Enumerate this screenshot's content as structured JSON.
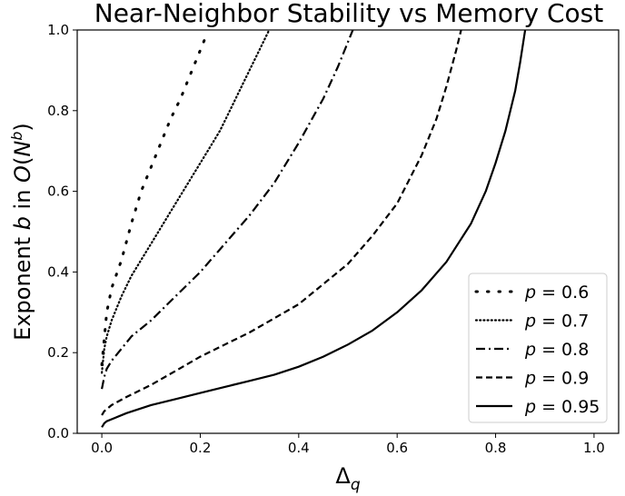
{
  "chart_data": {
    "type": "line",
    "title": "Near-Neighbor Stability vs Memory Cost",
    "xlabel": "Δ_q",
    "ylabel": "Exponent b in O(N^b)",
    "xlim": [
      -0.05,
      1.05
    ],
    "ylim": [
      0.0,
      1.0
    ],
    "x_ticks": [
      "0.0",
      "0.2",
      "0.4",
      "0.6",
      "0.8",
      "1.0"
    ],
    "y_ticks": [
      "0.0",
      "0.2",
      "0.4",
      "0.6",
      "0.8",
      "1.0"
    ],
    "grid": false,
    "legend": "bottom-right",
    "series": [
      {
        "name": "p = 0.6",
        "p_value": "0.6",
        "style": "dotted-sparse",
        "x": [
          0.0,
          0.01,
          0.02,
          0.04,
          0.06,
          0.08,
          0.1,
          0.12,
          0.14,
          0.16,
          0.18,
          0.2,
          0.21
        ],
        "y": [
          0.17,
          0.3,
          0.36,
          0.43,
          0.52,
          0.6,
          0.66,
          0.72,
          0.78,
          0.83,
          0.89,
          0.95,
          0.98
        ]
      },
      {
        "name": "p = 0.7",
        "p_value": "0.7",
        "style": "dotted",
        "x": [
          0.0,
          0.005,
          0.01,
          0.02,
          0.04,
          0.06,
          0.08,
          0.1,
          0.12,
          0.14,
          0.16,
          0.18,
          0.2,
          0.22,
          0.24,
          0.26,
          0.28,
          0.3,
          0.32,
          0.34
        ],
        "y": [
          0.15,
          0.21,
          0.24,
          0.28,
          0.34,
          0.39,
          0.43,
          0.47,
          0.51,
          0.55,
          0.59,
          0.63,
          0.67,
          0.71,
          0.75,
          0.8,
          0.85,
          0.9,
          0.95,
          1.0
        ]
      },
      {
        "name": "p = 0.8",
        "p_value": "0.8",
        "style": "dash-dot",
        "x": [
          0.0,
          0.005,
          0.01,
          0.02,
          0.04,
          0.06,
          0.08,
          0.1,
          0.15,
          0.2,
          0.25,
          0.3,
          0.35,
          0.4,
          0.45,
          0.48,
          0.51
        ],
        "y": [
          0.11,
          0.14,
          0.16,
          0.18,
          0.21,
          0.24,
          0.26,
          0.28,
          0.34,
          0.4,
          0.47,
          0.54,
          0.62,
          0.72,
          0.83,
          0.91,
          1.0
        ]
      },
      {
        "name": "p = 0.9",
        "p_value": "0.9",
        "style": "dashed",
        "x": [
          0.0,
          0.005,
          0.01,
          0.02,
          0.05,
          0.1,
          0.15,
          0.2,
          0.25,
          0.3,
          0.35,
          0.4,
          0.45,
          0.5,
          0.55,
          0.6,
          0.65,
          0.68,
          0.7,
          0.72,
          0.73
        ],
        "y": [
          0.045,
          0.055,
          0.06,
          0.07,
          0.09,
          0.12,
          0.155,
          0.19,
          0.22,
          0.25,
          0.285,
          0.32,
          0.37,
          0.42,
          0.49,
          0.57,
          0.69,
          0.78,
          0.86,
          0.95,
          1.0
        ]
      },
      {
        "name": "p = 0.95",
        "p_value": "0.95",
        "style": "solid",
        "x": [
          0.0,
          0.005,
          0.01,
          0.02,
          0.05,
          0.1,
          0.15,
          0.2,
          0.25,
          0.3,
          0.35,
          0.4,
          0.45,
          0.5,
          0.55,
          0.6,
          0.65,
          0.7,
          0.75,
          0.78,
          0.8,
          0.82,
          0.84,
          0.85,
          0.86
        ],
        "y": [
          0.015,
          0.025,
          0.03,
          0.035,
          0.05,
          0.07,
          0.085,
          0.1,
          0.115,
          0.13,
          0.145,
          0.165,
          0.19,
          0.22,
          0.255,
          0.3,
          0.355,
          0.425,
          0.52,
          0.6,
          0.67,
          0.75,
          0.85,
          0.92,
          1.0
        ]
      }
    ]
  }
}
